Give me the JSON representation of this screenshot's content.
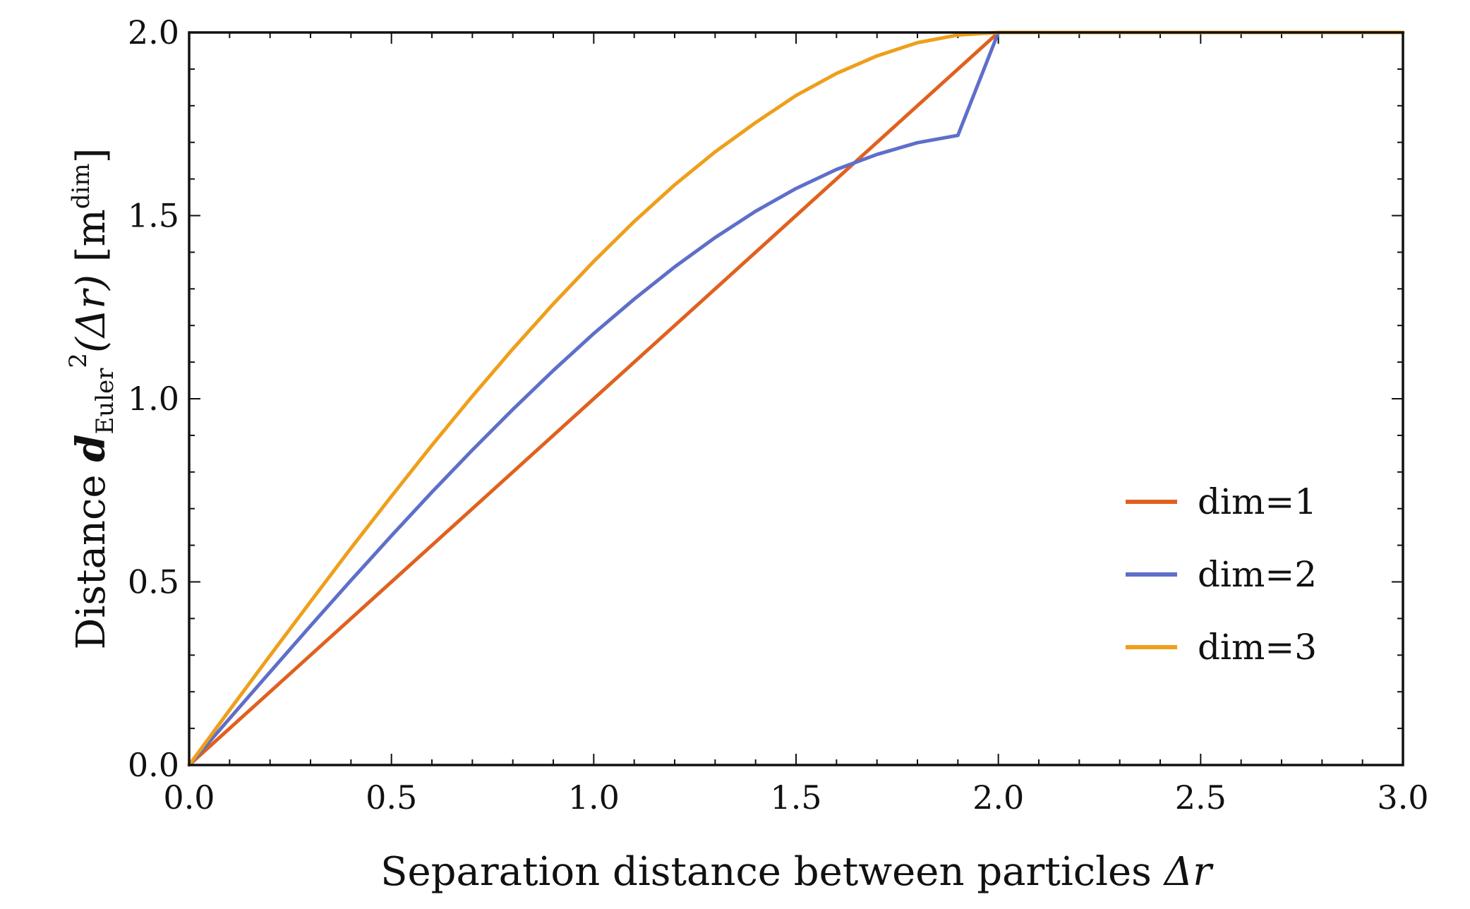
{
  "chart_data": {
    "type": "line",
    "title": "",
    "xlabel": {
      "text": "Separation distance between particles ",
      "symbol": "Δr"
    },
    "ylabel": {
      "prefix": "Distance ",
      "d": "d",
      "sub": "Euler",
      "sup": "2",
      "arg": "(Δr)",
      "unit_open": " [m",
      "unit_sup": "dim",
      "unit_close": "]"
    },
    "xlim": [
      0,
      3
    ],
    "ylim": [
      0,
      2
    ],
    "x_ticks": [
      "0.0",
      "0.5",
      "1.0",
      "1.5",
      "2.0",
      "2.5",
      "3.0"
    ],
    "y_ticks": [
      "0.0",
      "0.5",
      "1.0",
      "1.5",
      "2.0"
    ],
    "grid": false,
    "legend_position": "right-center",
    "series": [
      {
        "name": "dim=1",
        "color": "#e0611f",
        "x": [
          0,
          0.25,
          0.5,
          0.75,
          1.0,
          1.25,
          1.5,
          1.75,
          2.0,
          2.5,
          3.0
        ],
        "y": [
          0,
          0.25,
          0.5,
          0.75,
          1.0,
          1.25,
          1.5,
          1.75,
          2.0,
          2.0,
          2.0
        ]
      },
      {
        "name": "dim=2",
        "color": "#5e6fc9",
        "x": [
          0,
          0.1,
          0.2,
          0.3,
          0.4,
          0.5,
          0.6,
          0.7,
          0.8,
          0.9,
          1.0,
          1.1,
          1.2,
          1.3,
          1.4,
          1.5,
          1.6,
          1.7,
          1.8,
          1.9,
          2.0,
          2.5,
          3.0
        ],
        "y": [
          0,
          0.127,
          0.254,
          0.38,
          0.504,
          0.626,
          0.745,
          0.86,
          0.971,
          1.077,
          1.178,
          1.272,
          1.36,
          1.44,
          1.512,
          1.574,
          1.626,
          1.667,
          1.699,
          1.719,
          2.0,
          2.0,
          2.0
        ]
      },
      {
        "name": "dim=3",
        "color": "#ee9f1a",
        "x": [
          0,
          0.1,
          0.2,
          0.3,
          0.4,
          0.5,
          0.6,
          0.7,
          0.8,
          0.9,
          1.0,
          1.1,
          1.2,
          1.3,
          1.4,
          1.5,
          1.6,
          1.7,
          1.8,
          1.9,
          2.0,
          2.5,
          3.0
        ],
        "y": [
          0,
          0.15,
          0.299,
          0.446,
          0.592,
          0.734,
          0.873,
          1.007,
          1.136,
          1.259,
          1.375,
          1.484,
          1.584,
          1.674,
          1.754,
          1.828,
          1.888,
          1.936,
          1.972,
          1.993,
          2.0,
          2.0,
          2.0
        ]
      }
    ]
  }
}
